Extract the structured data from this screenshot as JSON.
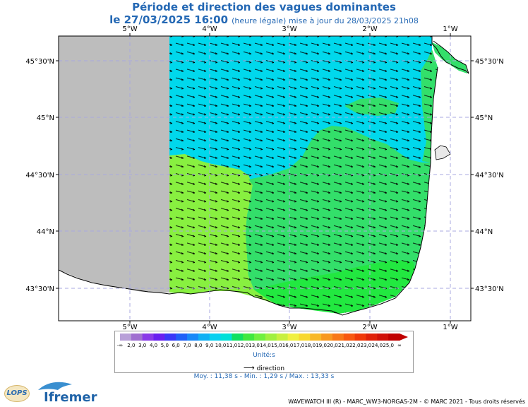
{
  "title": "Période et direction des vagues dominantes",
  "subtitle_date": "le 27/03/2025 16:00",
  "subtitle_note": "(heure légale) mise à jour du 28/03/2025 21h08",
  "map": {
    "lon_ticks_top": [
      "5°W",
      "4°W",
      "3°W",
      "2°W",
      "1°W"
    ],
    "lon_ticks_bottom": [
      "5°W",
      "4°W",
      "3°W",
      "2°W",
      "1°W"
    ],
    "lat_ticks_left": [
      "45°30'N",
      "45°N",
      "44°30'N",
      "44°N",
      "43°30'N"
    ],
    "lat_ticks_right": [
      "45°30'N",
      "45°N",
      "44°30'N",
      "44°N",
      "43°30'N"
    ],
    "lon_values": [
      -5,
      -4,
      -3,
      -2,
      -1
    ],
    "lat_values": [
      45.5,
      45.0,
      44.5,
      44.0,
      43.5
    ],
    "arrow_direction": "west-to-east, slightly south",
    "colors": {
      "land": "#ffffff",
      "outside_domain": "#bdbdbd",
      "period_10_11": "#00d8ec",
      "period_11_12": "#24e832",
      "period_12_13": "#80f040",
      "period_13_14": "#33e07a"
    }
  },
  "legend": {
    "labels": [
      "-∞",
      "2,0",
      "3,0",
      "4,0",
      "5,0",
      "6,0",
      "7,0",
      "8,0",
      "9,0",
      "10,0",
      "11,0",
      "12,0",
      "13,0",
      "14,0",
      "15,0",
      "16,0",
      "17,0",
      "18,0",
      "19,0",
      "20,0",
      "21,0",
      "22,0",
      "23,0",
      "24,0",
      "25,0",
      "∞"
    ],
    "colors": [
      "#b8a0d8",
      "#a070d0",
      "#8a3ae8",
      "#6a20f0",
      "#3a38f8",
      "#2060f8",
      "#1888f8",
      "#10b0f4",
      "#08d0f0",
      "#00e0d8",
      "#10e060",
      "#40e840",
      "#70f040",
      "#a0f040",
      "#c8f040",
      "#f0f040",
      "#f8d830",
      "#f8b828",
      "#f89820",
      "#f87818",
      "#f85810",
      "#f03808",
      "#e02008",
      "#d01008",
      "#c00000"
    ],
    "units": "Unité:s",
    "direction_label": "direction",
    "stats": "Moy. : 11,38 s   -   Min. : 1,29 s / Max. : 13,33 s"
  },
  "footer": "WAVEWATCH III (R) - MARC_WW3-NORGAS-2M - © MARC 2021 - Tous droits réservés",
  "logos": {
    "lops": "LOPS",
    "ifremer": "Ifremer"
  }
}
